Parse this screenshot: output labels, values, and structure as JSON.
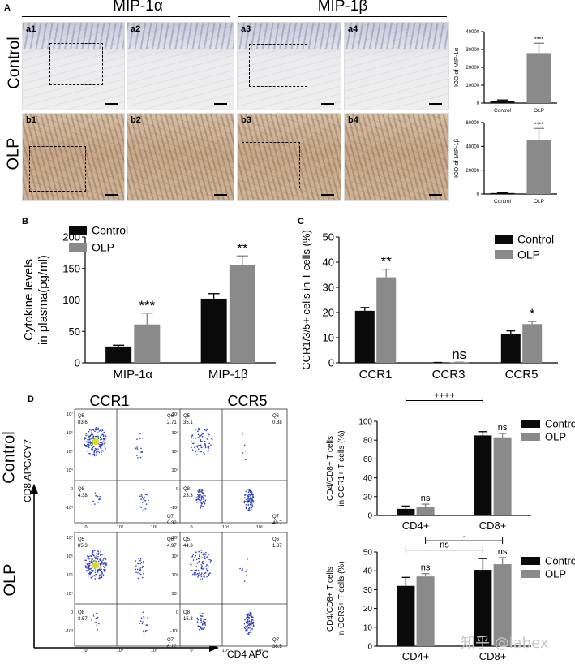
{
  "panels": {
    "A": {
      "letter": "A",
      "headers": [
        "MIP-1α",
        "MIP-1β"
      ],
      "row_labels": [
        "Control",
        "OLP"
      ],
      "sublabels": [
        "a1",
        "a2",
        "a3",
        "a4",
        "b1",
        "b2",
        "b3",
        "b4"
      ]
    },
    "B": {
      "letter": "B"
    },
    "C": {
      "letter": "C"
    },
    "D": {
      "letter": "D",
      "col_headers": [
        "CCR1",
        "CCR5"
      ],
      "row_labels": [
        "Control",
        "OLP"
      ],
      "y_axis_label": "CD8 APC/CY7",
      "x_axis_label": "CD4 APC",
      "flow_ticks": {
        "y": [
          "10⁷",
          "10⁶",
          "10⁵",
          "10⁴",
          "0",
          "-10³"
        ],
        "x": [
          "0",
          "10⁴",
          "10⁵"
        ]
      },
      "flow_plots": [
        {
          "id": "control-ccr1",
          "quadrants": [
            {
              "q": "Q5",
              "v": "83.6"
            },
            {
              "q": "Q6",
              "v": "2.71"
            },
            {
              "q": "Q8",
              "v": "4.38"
            },
            {
              "q": "Q7",
              "v": "9.32"
            }
          ]
        },
        {
          "id": "control-ccr5",
          "quadrants": [
            {
              "q": "Q5",
              "v": "35.1"
            },
            {
              "q": "Q6",
              "v": "0.88"
            },
            {
              "q": "Q8",
              "v": "23.3"
            },
            {
              "q": "Q7",
              "v": "40.7"
            }
          ]
        },
        {
          "id": "olp-ccr1",
          "quadrants": [
            {
              "q": "Q5",
              "v": "85.3"
            },
            {
              "q": "Q6",
              "v": "4.97"
            },
            {
              "q": "Q8",
              "v": "3.57"
            },
            {
              "q": "Q7",
              "v": "6.12"
            }
          ]
        },
        {
          "id": "olp-ccr5",
          "quadrants": [
            {
              "q": "Q5",
              "v": "44.3"
            },
            {
              "q": "Q6",
              "v": "1.87"
            },
            {
              "q": "Q8",
              "v": "15.3"
            },
            {
              "q": "Q7",
              "v": "38.5"
            }
          ]
        }
      ]
    }
  },
  "watermark": "知乎 @labex",
  "colors": {
    "control": "#0a0a0a",
    "olp": "#8a8a8a"
  },
  "chart_data": [
    {
      "id": "A-top",
      "type": "bar",
      "categories": [
        "Control",
        "OLP"
      ],
      "values": [
        1200,
        28000
      ],
      "errors": [
        500,
        5500
      ],
      "sig": [
        "",
        "****"
      ],
      "ylabel": "IOD of MIP-1α",
      "ylim": [
        0,
        40000
      ],
      "yticks": [
        "0",
        "10000",
        "20000",
        "30000",
        "40000"
      ],
      "grid": false
    },
    {
      "id": "A-bottom",
      "type": "bar",
      "categories": [
        "Control",
        "OLP"
      ],
      "values": [
        800,
        45500
      ],
      "errors": [
        300,
        9500
      ],
      "sig": [
        "",
        "****"
      ],
      "ylabel": "IOD of MIP-1β",
      "ylim": [
        0,
        60000
      ],
      "yticks": [
        "0",
        "20000",
        "40000",
        "60000"
      ],
      "grid": false
    },
    {
      "id": "B",
      "type": "bar",
      "categories": [
        "MIP-1α",
        "MIP-1β"
      ],
      "series": [
        {
          "name": "Control",
          "values": [
            26,
            102
          ],
          "errors": [
            2,
            8
          ]
        },
        {
          "name": "OLP",
          "values": [
            61,
            155
          ],
          "errors": [
            18,
            15
          ]
        }
      ],
      "sig": [
        "***",
        "**"
      ],
      "ylabel": "Cytokine levels in plasma(pg/ml)",
      "ylim": [
        0,
        200
      ],
      "yticks": [
        "0",
        "50",
        "100",
        "150",
        "200"
      ],
      "legend": "top-left"
    },
    {
      "id": "C",
      "type": "bar",
      "categories": [
        "CCR1",
        "CCR3",
        "CCR5"
      ],
      "series": [
        {
          "name": "Control",
          "values": [
            20.7,
            0.1,
            11.5
          ],
          "errors": [
            1.3,
            0.05,
            1.2
          ]
        },
        {
          "name": "OLP",
          "values": [
            34,
            0.2,
            15.4
          ],
          "errors": [
            3.2,
            0.05,
            1.0
          ]
        }
      ],
      "sig": [
        "**",
        "ns",
        "*"
      ],
      "ylabel": "CCR1/3/5+ cells in T cells (%)",
      "ylim": [
        0,
        50
      ],
      "yticks": [
        "0",
        "10",
        "20",
        "30",
        "40",
        "50"
      ],
      "legend": "top-right"
    },
    {
      "id": "D-top",
      "type": "bar",
      "categories": [
        "CD4+",
        "CD8+"
      ],
      "series": [
        {
          "name": "Control",
          "values": [
            7,
            85
          ],
          "errors": [
            3,
            4
          ]
        },
        {
          "name": "OLP",
          "values": [
            9.5,
            83
          ],
          "errors": [
            2.5,
            4
          ]
        }
      ],
      "sig": [
        "ns",
        "ns"
      ],
      "brackets": [
        {
          "label": "++++",
          "from": "CD4+ Control",
          "to": "CD8+ Control",
          "level": 122
        },
        {
          "label": "++++",
          "from": "CD4+ OLP",
          "to": "CD8+ OLP",
          "level": 143
        }
      ],
      "ylabel": "CD4/CD8+ T cells in CCR1+ T cells (%)",
      "ylim": [
        0,
        100
      ],
      "yticks": [
        "0",
        "20",
        "40",
        "60",
        "80",
        "100"
      ],
      "legend": "top-right"
    },
    {
      "id": "D-bottom",
      "type": "bar",
      "categories": [
        "CD4+",
        "CD8+"
      ],
      "series": [
        {
          "name": "Control",
          "values": [
            32,
            40.5
          ],
          "errors": [
            4.5,
            6
          ]
        },
        {
          "name": "OLP",
          "values": [
            37,
            43.5
          ],
          "errors": [
            1.5,
            3.5
          ]
        }
      ],
      "sig": [
        "ns",
        "ns"
      ],
      "brackets": [
        {
          "label": "ns",
          "from": "CD4+ Control",
          "to": "CD8+ Control",
          "level": 51
        },
        {
          "label": "+",
          "from": "CD4+ OLP",
          "to": "CD8+ OLP",
          "level": 56
        }
      ],
      "ylabel": "CD4/CD8+ T cells in CCR5+ T cells (%)",
      "ylim": [
        0,
        50
      ],
      "yticks": [
        "0",
        "10",
        "20",
        "30",
        "40",
        "50"
      ],
      "legend": "top-right"
    }
  ]
}
